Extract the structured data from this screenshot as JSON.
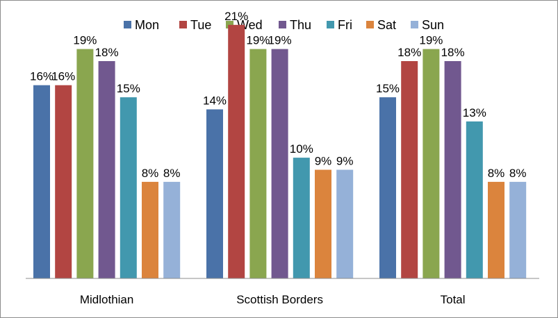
{
  "chart_data": {
    "type": "bar",
    "title": "",
    "xlabel": "",
    "ylabel": "",
    "ylim": [
      0,
      0.23
    ],
    "grid": false,
    "legend_position": "top",
    "categories": [
      "Midlothian",
      "Scottish Borders",
      "Total"
    ],
    "series": [
      {
        "name": "Mon",
        "color": "#4a72a8",
        "values": [
          0.16,
          0.14,
          0.15
        ],
        "labels": [
          "16%",
          "14%",
          "15%"
        ]
      },
      {
        "name": "Tue",
        "color": "#b24542",
        "values": [
          0.16,
          0.21,
          0.18
        ],
        "labels": [
          "16%",
          "21%",
          "18%"
        ]
      },
      {
        "name": "Wed",
        "color": "#8aa64f",
        "values": [
          0.19,
          0.19,
          0.19
        ],
        "labels": [
          "19%",
          "19%",
          "19%"
        ]
      },
      {
        "name": "Thu",
        "color": "#71588f",
        "values": [
          0.18,
          0.19,
          0.18
        ],
        "labels": [
          "18%",
          "19%",
          "18%"
        ]
      },
      {
        "name": "Fri",
        "color": "#4298ae",
        "values": [
          0.15,
          0.1,
          0.13
        ],
        "labels": [
          "15%",
          "10%",
          "13%"
        ]
      },
      {
        "name": "Sat",
        "color": "#db843d",
        "values": [
          0.08,
          0.09,
          0.08
        ],
        "labels": [
          "8%",
          "9%",
          "8%"
        ]
      },
      {
        "name": "Sun",
        "color": "#95b1d8",
        "values": [
          0.08,
          0.09,
          0.08
        ],
        "labels": [
          "8%",
          "9%",
          "8%"
        ]
      }
    ]
  }
}
